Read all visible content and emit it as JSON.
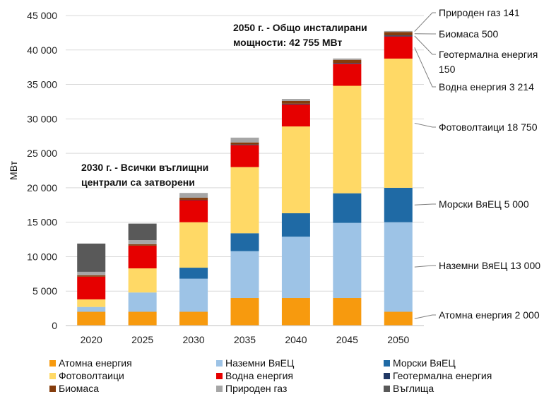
{
  "chart_data": {
    "type": "bar",
    "stacked": true,
    "categories": [
      "2020",
      "2025",
      "2030",
      "2035",
      "2040",
      "2045",
      "2050"
    ],
    "ylabel": "МВт",
    "ylim": [
      0,
      45000
    ],
    "yticks": [
      0,
      5000,
      10000,
      15000,
      20000,
      25000,
      30000,
      35000,
      40000,
      45000
    ],
    "ytick_labels": [
      "0",
      "5 000",
      "10 000",
      "15 000",
      "20 000",
      "25 000",
      "30 000",
      "35 000",
      "40 000",
      "45 000"
    ],
    "grid": true,
    "legend_position": "bottom",
    "series": [
      {
        "name": "Атомна енергия",
        "color": "#F79A0E",
        "values": [
          2000,
          2000,
          2000,
          4000,
          4000,
          4000,
          2000
        ]
      },
      {
        "name": "Наземни ВяЕЦ",
        "color": "#9DC3E6",
        "values": [
          700,
          2800,
          4800,
          6800,
          8900,
          10900,
          13000
        ]
      },
      {
        "name": "Морски ВяЕЦ",
        "color": "#1F6AA5",
        "values": [
          0,
          0,
          1600,
          2600,
          3400,
          4300,
          5000
        ]
      },
      {
        "name": "Фотоволтаици",
        "color": "#FFD966",
        "values": [
          1100,
          3500,
          6600,
          9600,
          12600,
          15600,
          18750
        ]
      },
      {
        "name": "Водна енергия",
        "color": "#E60000",
        "values": [
          3300,
          3300,
          3200,
          3200,
          3200,
          3200,
          3214
        ]
      },
      {
        "name": "Геотермална енергия",
        "color": "#203864",
        "values": [
          0,
          0,
          50,
          80,
          100,
          120,
          150
        ]
      },
      {
        "name": "Биомаса",
        "color": "#843C0C",
        "values": [
          200,
          200,
          300,
          300,
          400,
          450,
          500
        ]
      },
      {
        "name": "Природен газ",
        "color": "#A6A6A6",
        "values": [
          500,
          600,
          700,
          700,
          300,
          200,
          141
        ]
      },
      {
        "name": "Въглища",
        "color": "#595959",
        "values": [
          4100,
          2400,
          0,
          0,
          0,
          0,
          0
        ]
      }
    ],
    "annotations": [
      {
        "id": "a2050",
        "lines": [
          "2050 г. - Общо инсталирани",
          "мощности: 42 755 МВт"
        ]
      },
      {
        "id": "a2030",
        "lines": [
          "2030 г. - Всички въглищни",
          "централи са затворени"
        ]
      }
    ],
    "right_labels": [
      {
        "lines": [
          "Природен газ 141"
        ],
        "series": "Природен газ"
      },
      {
        "lines": [
          "Биомаса 500"
        ],
        "series": "Биомаса"
      },
      {
        "lines": [
          "Геотермална енергия",
          "150"
        ],
        "series": "Геотермална енергия"
      },
      {
        "lines": [
          "Водна енергия 3 214"
        ],
        "series": "Водна енергия"
      },
      {
        "lines": [
          "Фотоволтаици 18 750"
        ],
        "series": "Фотоволтаици"
      },
      {
        "lines": [
          "Морски ВяЕЦ 5 000"
        ],
        "series": "Морски ВяЕЦ"
      },
      {
        "lines": [
          "Наземни ВяЕЦ 13 000"
        ],
        "series": "Наземни ВяЕЦ"
      },
      {
        "lines": [
          "Атомна енергия 2 000"
        ],
        "series": "Атомна енергия"
      }
    ]
  }
}
